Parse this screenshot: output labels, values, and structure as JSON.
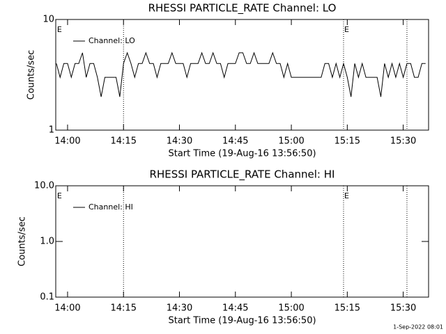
{
  "chart_data": [
    {
      "type": "line",
      "title": "RHESSI PARTICLE_RATE Channel: LO",
      "xlabel": "Start Time (19-Aug-16 13:56:50)",
      "ylabel": "Counts/sec",
      "log_y": true,
      "xlim": [
        836.83,
        936.8
      ],
      "xticks": [
        {
          "value": 840,
          "label": "14:00"
        },
        {
          "value": 855,
          "label": "14:15"
        },
        {
          "value": 870,
          "label": "14:30"
        },
        {
          "value": 885,
          "label": "14:45"
        },
        {
          "value": 900,
          "label": "15:00"
        },
        {
          "value": 915,
          "label": "15:15"
        },
        {
          "value": 930,
          "label": "15:30"
        }
      ],
      "ylim": [
        1,
        10
      ],
      "yticks": [
        1,
        10
      ],
      "event_lines": [
        855,
        914,
        931
      ],
      "annotations": [
        {
          "x": 837,
          "text": "E"
        },
        {
          "x": 914,
          "text": "E"
        }
      ],
      "x": [
        837,
        838,
        839,
        840,
        841,
        842,
        843,
        844,
        845,
        846,
        847,
        848,
        849,
        850,
        851,
        852,
        853,
        854,
        855,
        856,
        857,
        858,
        859,
        860,
        861,
        862,
        863,
        864,
        865,
        866,
        867,
        868,
        869,
        870,
        871,
        872,
        873,
        874,
        875,
        876,
        877,
        878,
        879,
        880,
        881,
        882,
        883,
        884,
        885,
        886,
        887,
        888,
        889,
        890,
        891,
        892,
        893,
        894,
        895,
        896,
        897,
        898,
        899,
        900,
        901,
        902,
        903,
        904,
        905,
        906,
        907,
        908,
        909,
        910,
        911,
        912,
        913,
        914,
        915,
        916,
        917,
        918,
        919,
        920,
        921,
        922,
        923,
        924,
        925,
        926,
        927,
        928,
        929,
        930,
        931,
        932,
        933,
        934,
        935,
        936
      ],
      "series": [
        {
          "name": "Channel: LO",
          "color": "#000000",
          "values": [
            4,
            3,
            4,
            4,
            3,
            4,
            4,
            5,
            3,
            4,
            4,
            3,
            2,
            3,
            3,
            3,
            3,
            2,
            4,
            5,
            4,
            3,
            4,
            4,
            5,
            4,
            4,
            3,
            4,
            4,
            4,
            5,
            4,
            4,
            4,
            3,
            4,
            4,
            4,
            5,
            4,
            4,
            5,
            4,
            4,
            3,
            4,
            4,
            4,
            5,
            5,
            4,
            4,
            5,
            4,
            4,
            4,
            4,
            5,
            4,
            4,
            3,
            4,
            3,
            3,
            3,
            3,
            3,
            3,
            3,
            3,
            3,
            4,
            4,
            3,
            4,
            3,
            4,
            3,
            2,
            4,
            3,
            4,
            3,
            3,
            3,
            3,
            2,
            4,
            3,
            4,
            3,
            4,
            3,
            4,
            4,
            3,
            3,
            4,
            4
          ]
        }
      ]
    },
    {
      "type": "line",
      "title": "RHESSI PARTICLE_RATE Channel: HI",
      "xlabel": "Start Time (19-Aug-16 13:56:50)",
      "ylabel": "Counts/sec",
      "log_y": true,
      "xlim": [
        836.83,
        936.8
      ],
      "xticks": [
        {
          "value": 840,
          "label": "14:00"
        },
        {
          "value": 855,
          "label": "14:15"
        },
        {
          "value": 870,
          "label": "14:30"
        },
        {
          "value": 885,
          "label": "14:45"
        },
        {
          "value": 900,
          "label": "15:00"
        },
        {
          "value": 915,
          "label": "15:15"
        },
        {
          "value": 930,
          "label": "15:30"
        }
      ],
      "ylim": [
        0.1,
        10
      ],
      "yticks": [
        0.1,
        {
          "value": 1,
          "label": "1.0"
        },
        {
          "value": 10,
          "label": "10.0"
        }
      ],
      "event_lines": [
        855,
        914,
        931
      ],
      "annotations": [
        {
          "x": 837,
          "text": "E"
        },
        {
          "x": 914,
          "text": "E"
        }
      ],
      "x": [],
      "series": [
        {
          "name": "Channel: HI",
          "color": "#000000",
          "values": []
        }
      ]
    }
  ],
  "footer": "1-Sep-2022 08:01"
}
